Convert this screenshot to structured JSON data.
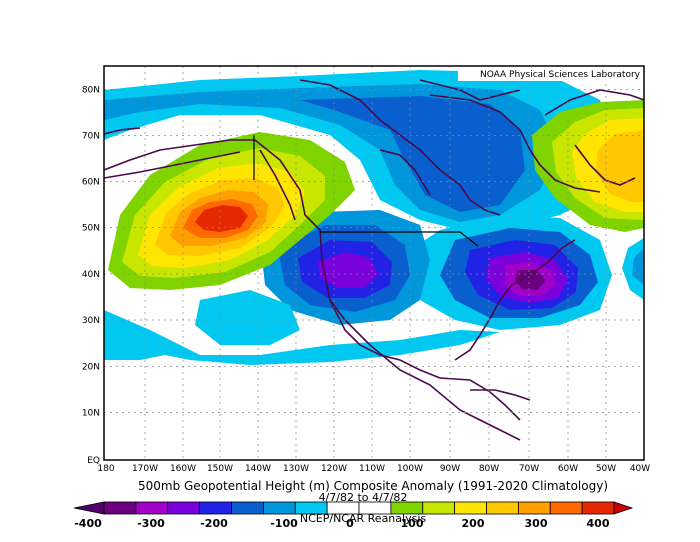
{
  "map": {
    "credit": "NOAA Physical Sciences Laboratory",
    "lat_labels": [
      "80N",
      "70N",
      "60N",
      "50N",
      "40N",
      "30N",
      "20N",
      "10N",
      "EQ"
    ],
    "lon_labels": [
      "180",
      "170W",
      "160W",
      "150W",
      "140W",
      "130W",
      "120W",
      "110W",
      "100W",
      "90W",
      "80W",
      "70W",
      "60W",
      "50W",
      "40W"
    ],
    "title": "500mb Geopotential Height (m) Composite Anomaly (1991-2020 Climatology)",
    "date_range": "4/7/82  to 4/7/82",
    "source": "NCEP/NCAR Reanalysis"
  },
  "colorbar": {
    "ticks": [
      "-400",
      "-300",
      "-200",
      "-100",
      "0",
      "100",
      "200",
      "300",
      "400"
    ],
    "colors": [
      "#6a0080",
      "#a000c8",
      "#7a00dc",
      "#2222e6",
      "#0a5fcf",
      "#0096dc",
      "#00c8f0",
      "#ffffff",
      "#ffffff",
      "#7fd400",
      "#c8e600",
      "#ffe600",
      "#ffc800",
      "#ffa000",
      "#ff6a00",
      "#e62800"
    ]
  },
  "palette": {
    "neg1": "#00c8f0",
    "neg2": "#0096dc",
    "neg3": "#0a5fcf",
    "neg4": "#2222e6",
    "neg5": "#7a00dc",
    "neg6": "#a000c8",
    "neg7": "#6a0080",
    "pos1": "#7fd400",
    "pos2": "#c8e600",
    "pos3": "#ffe600",
    "pos4": "#ffc800",
    "pos5": "#ffa000",
    "pos6": "#ff6a00",
    "pos7": "#e62800",
    "coast": "#4a0a4a"
  }
}
